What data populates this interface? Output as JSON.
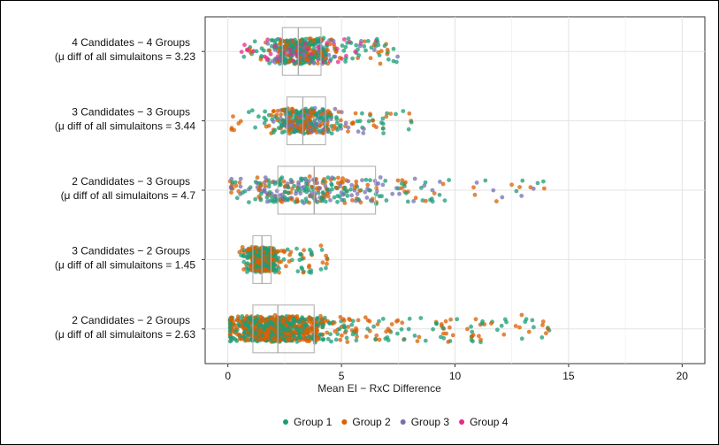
{
  "chart_data": {
    "type": "scatter",
    "subtype": "jittered strip plot with box plots",
    "title": "",
    "xlabel": "Mean EI − RxC Difference",
    "ylabel": "",
    "xlim": [
      -1,
      21
    ],
    "x_ticks": [
      "0",
      "5",
      "10",
      "15",
      "20"
    ],
    "x_tick_values": [
      0,
      5,
      10,
      15,
      20
    ],
    "grid": true,
    "legend_position": "bottom",
    "categories": [
      {
        "label_line1": "4 Candidates − 4 Groups",
        "label_line2": "(μ diff of all simulaitons =  3.23",
        "mean_diff": 3.23,
        "box": {
          "q1": 2.4,
          "median": 3.1,
          "q3": 4.1
        },
        "point_count": 480,
        "point_range": [
          0.6,
          7.5
        ],
        "group_weights": [
          0.45,
          0.25,
          0.15,
          0.15
        ]
      },
      {
        "label_line1": "3 Candidates − 3 Groups",
        "label_line2": "(μ diff of all simulaitons =  3.44",
        "mean_diff": 3.44,
        "box": {
          "q1": 2.6,
          "median": 3.3,
          "q3": 4.3
        },
        "point_count": 380,
        "point_range": [
          0.1,
          8.1
        ],
        "group_weights": [
          0.45,
          0.35,
          0.2,
          0
        ]
      },
      {
        "label_line1": "2 Candidates − 3 Groups",
        "label_line2": "(μ diff of all simulaitons =  4.7",
        "mean_diff": 4.7,
        "box": {
          "q1": 2.2,
          "median": 3.8,
          "q3": 6.5
        },
        "point_count": 320,
        "point_range": [
          0.1,
          14.5
        ],
        "group_weights": [
          0.4,
          0.35,
          0.25,
          0
        ]
      },
      {
        "label_line1": "3 Candidates − 2 Groups",
        "label_line2": "(μ diff of all simulaitons =  1.45",
        "mean_diff": 1.45,
        "box": {
          "q1": 1.1,
          "median": 1.5,
          "q3": 1.9
        },
        "point_count": 420,
        "point_range": [
          0.4,
          4.4
        ],
        "group_weights": [
          0.55,
          0.45,
          0,
          0
        ]
      },
      {
        "label_line1": "2 Candidates − 2 Groups",
        "label_line2": "(μ diff of all simulaitons =  2.63",
        "mean_diff": 2.63,
        "box": {
          "q1": 1.1,
          "median": 2.2,
          "q3": 3.8
        },
        "point_count": 900,
        "point_range": [
          0.1,
          14.2
        ],
        "group_weights": [
          0.5,
          0.5,
          0,
          0
        ]
      }
    ],
    "series": [
      {
        "name": "Group 1",
        "color": "#1b9e77"
      },
      {
        "name": "Group 2",
        "color": "#d95f02"
      },
      {
        "name": "Group 3",
        "color": "#7570b3"
      },
      {
        "name": "Group 4",
        "color": "#e7298a"
      }
    ]
  }
}
